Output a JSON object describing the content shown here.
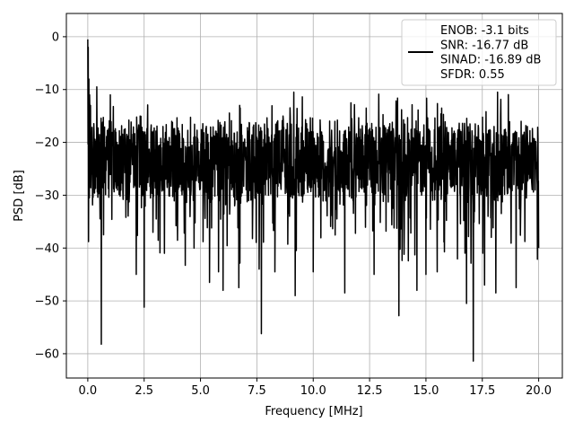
{
  "chart_data": {
    "type": "line",
    "title": "",
    "xlabel": "Frequency [MHz]",
    "ylabel": "PSD [dB]",
    "xlim": [
      -0.95,
      21.05
    ],
    "ylim": [
      -64.6,
      4.4
    ],
    "xticks": [
      0.0,
      2.5,
      5.0,
      7.5,
      10.0,
      12.5,
      15.0,
      17.5,
      20.0
    ],
    "xtick_labels": [
      "0.0",
      "2.5",
      "5.0",
      "7.5",
      "10.0",
      "12.5",
      "15.0",
      "17.5",
      "20.0"
    ],
    "yticks": [
      0,
      -10,
      -20,
      -30,
      -40,
      -50,
      -60
    ],
    "ytick_labels": [
      "0",
      "−10",
      "−20",
      "−30",
      "−40",
      "−50",
      "−60"
    ],
    "grid": true,
    "legend_position": "top-right",
    "series": [
      {
        "name": "ENOB: -3.1 bits\nSNR: -16.77 dB\nSINAD: -16.89 dB\nSFDR: 0.55",
        "color": "#000000",
        "x_range": [
          0.0,
          20.0
        ],
        "n_points": 1800,
        "baseline_db": -23.5,
        "noise_spread_db": 9,
        "low_freq_peaks": [
          [
            0.0,
            -0.5
          ],
          [
            0.02,
            -2.0
          ],
          [
            0.05,
            -8.0
          ],
          [
            0.08,
            -11.0
          ],
          [
            0.12,
            -13.0
          ]
        ],
        "notable_peaks": [
          [
            0.4,
            -9.5
          ],
          [
            1.0,
            -11.0
          ],
          [
            10.0,
            -9.5
          ]
        ],
        "notable_dips": [
          [
            0.07,
            -30.5
          ],
          [
            0.6,
            -58.2
          ],
          [
            2.15,
            -45.0
          ],
          [
            2.5,
            -51.2
          ],
          [
            3.4,
            -41.0
          ],
          [
            5.4,
            -46.5
          ],
          [
            5.8,
            -44.5
          ],
          [
            6.0,
            -48.0
          ],
          [
            6.7,
            -47.5
          ],
          [
            7.6,
            -44.0
          ],
          [
            7.7,
            -56.2
          ],
          [
            8.3,
            -44.5
          ],
          [
            9.2,
            -49.0
          ],
          [
            10.0,
            -44.5
          ],
          [
            11.4,
            -48.5
          ],
          [
            12.7,
            -45.0
          ],
          [
            13.8,
            -52.8
          ],
          [
            14.6,
            -48.0
          ],
          [
            15.0,
            -45.0
          ],
          [
            15.5,
            -44.5
          ],
          [
            16.8,
            -50.5
          ],
          [
            17.1,
            -61.4
          ],
          [
            17.6,
            -47.0
          ],
          [
            18.1,
            -48.5
          ],
          [
            19.0,
            -47.5
          ],
          [
            20.0,
            -40.0
          ]
        ]
      }
    ]
  }
}
